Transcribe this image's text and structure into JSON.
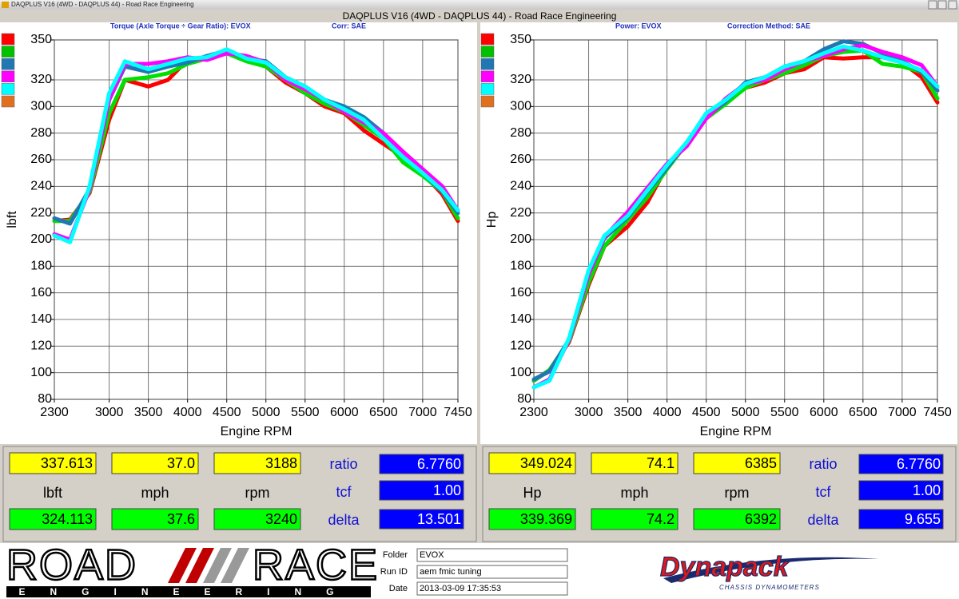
{
  "app": {
    "window_title": "DAQPLUS V16 (4WD - DAQPLUS 44) - Road Race Engineering",
    "title": "DAQPLUS V16 (4WD - DAQPLUS 44) - Road Race Engineering"
  },
  "chart_data": [
    {
      "type": "line",
      "title": "Torque (Axle Torque ÷ Gear Ratio): EVOX",
      "correction": "Corr: SAE",
      "y_label": "lbft",
      "x_label": "Engine RPM",
      "x": [
        2300,
        2500,
        2750,
        3000,
        3200,
        3500,
        3750,
        4000,
        4250,
        4500,
        4750,
        5000,
        5250,
        5500,
        5750,
        6000,
        6250,
        6500,
        6750,
        7000,
        7250,
        7450
      ],
      "xlim": [
        2300,
        7450
      ],
      "xticks": [
        2300,
        3000,
        3500,
        4000,
        4500,
        5000,
        5500,
        6000,
        6500,
        7000,
        7450
      ],
      "ylim": [
        80,
        350
      ],
      "yticks": [
        80,
        100,
        120,
        140,
        160,
        180,
        200,
        220,
        240,
        260,
        280,
        300,
        320,
        350
      ],
      "grid": true,
      "legend_colors": [
        "#ff0000",
        "#00c000",
        "#1f77b4",
        "#ff00ff",
        "#00ffff",
        "#e07020"
      ],
      "series": [
        {
          "color": "#ff0000",
          "values": [
            214,
            215,
            235,
            290,
            320,
            315,
            320,
            335,
            336,
            340,
            335,
            330,
            318,
            310,
            300,
            295,
            282,
            272,
            262,
            250,
            234,
            214
          ]
        },
        {
          "color": "#00e000",
          "values": [
            214,
            214,
            236,
            295,
            320,
            322,
            325,
            332,
            336,
            340,
            334,
            330,
            320,
            310,
            302,
            296,
            286,
            276,
            258,
            248,
            236,
            216
          ]
        },
        {
          "color": "#1f77b4",
          "values": [
            216,
            212,
            238,
            305,
            330,
            326,
            330,
            333,
            338,
            342,
            336,
            334,
            322,
            315,
            305,
            300,
            292,
            280,
            264,
            250,
            236,
            220
          ]
        },
        {
          "color": "#ff00ff",
          "values": [
            204,
            200,
            238,
            305,
            332,
            332,
            334,
            337,
            335,
            340,
            338,
            333,
            320,
            313,
            305,
            296,
            288,
            280,
            266,
            253,
            240,
            222
          ]
        },
        {
          "color": "#00ffff",
          "values": [
            203,
            198,
            240,
            310,
            334,
            328,
            332,
            336,
            337,
            343,
            336,
            333,
            322,
            315,
            305,
            298,
            290,
            276,
            262,
            250,
            237,
            222
          ]
        }
      ]
    },
    {
      "type": "line",
      "title": "Power: EVOX",
      "correction": "Correction Method: SAE",
      "y_label": "Hp",
      "x_label": "Engine RPM",
      "x": [
        2300,
        2500,
        2750,
        3000,
        3200,
        3500,
        3750,
        4000,
        4250,
        4500,
        4750,
        5000,
        5250,
        5500,
        5750,
        6000,
        6250,
        6500,
        6750,
        7000,
        7250,
        7450
      ],
      "xlim": [
        2300,
        7450
      ],
      "xticks": [
        2300,
        3000,
        3500,
        4000,
        4500,
        5000,
        5500,
        6000,
        6500,
        7000,
        7450
      ],
      "ylim": [
        80,
        350
      ],
      "yticks": [
        80,
        100,
        120,
        140,
        160,
        180,
        200,
        220,
        240,
        260,
        280,
        300,
        320,
        350
      ],
      "grid": true,
      "legend_colors": [
        "#ff0000",
        "#00c000",
        "#1f77b4",
        "#ff00ff",
        "#00ffff",
        "#e07020"
      ],
      "series": [
        {
          "color": "#ff0000",
          "values": [
            94,
            102,
            123,
            166,
            195,
            210,
            228,
            255,
            272,
            291,
            303,
            314,
            318,
            325,
            328,
            337,
            336,
            337,
            337,
            333,
            322,
            303
          ]
        },
        {
          "color": "#00e000",
          "values": [
            94,
            102,
            124,
            168,
            195,
            215,
            232,
            253,
            272,
            291,
            302,
            314,
            320,
            325,
            331,
            338,
            341,
            342,
            332,
            330,
            326,
            306
          ]
        },
        {
          "color": "#1f77b4",
          "values": [
            95,
            101,
            125,
            174,
            201,
            217,
            236,
            254,
            273,
            292,
            304,
            318,
            322,
            330,
            334,
            343,
            349,
            347,
            340,
            334,
            326,
            312
          ]
        },
        {
          "color": "#ff00ff",
          "values": [
            89,
            95,
            125,
            174,
            202,
            221,
            239,
            257,
            270,
            291,
            306,
            317,
            320,
            328,
            334,
            338,
            343,
            346,
            341,
            337,
            331,
            315
          ]
        },
        {
          "color": "#00ffff",
          "values": [
            89,
            94,
            126,
            177,
            203,
            218,
            237,
            256,
            273,
            295,
            305,
            317,
            322,
            330,
            334,
            340,
            345,
            342,
            337,
            333,
            327,
            315
          ]
        }
      ]
    }
  ],
  "readouts": [
    {
      "peak": [
        "337.613",
        "37.0",
        "3188"
      ],
      "units": [
        "lbft",
        "mph",
        "rpm"
      ],
      "current": [
        "324.113",
        "37.6",
        "3240"
      ],
      "param_labels": [
        "ratio",
        "tcf",
        "delta"
      ],
      "param_values": [
        "6.7760",
        "1.00",
        "13.501"
      ]
    },
    {
      "peak": [
        "349.024",
        "74.1",
        "6385"
      ],
      "units": [
        "Hp",
        "mph",
        "rpm"
      ],
      "current": [
        "339.369",
        "74.2",
        "6392"
      ],
      "param_labels": [
        "ratio",
        "tcf",
        "delta"
      ],
      "param_values": [
        "6.7760",
        "1.00",
        "9.655"
      ]
    }
  ],
  "footer": {
    "logo_left": "ROAD",
    "logo_right": "RACE",
    "logo_tagline": "ENGINEERING",
    "fields": [
      {
        "label": "Folder",
        "value": "EVOX"
      },
      {
        "label": "Run ID",
        "value": "aem fmic tuning"
      },
      {
        "label": "Date",
        "value": "2013-03-09 17:35:53"
      }
    ],
    "brand": "Dynapack",
    "brand_tagline": "CHASSIS DYNAMOMETERS"
  }
}
